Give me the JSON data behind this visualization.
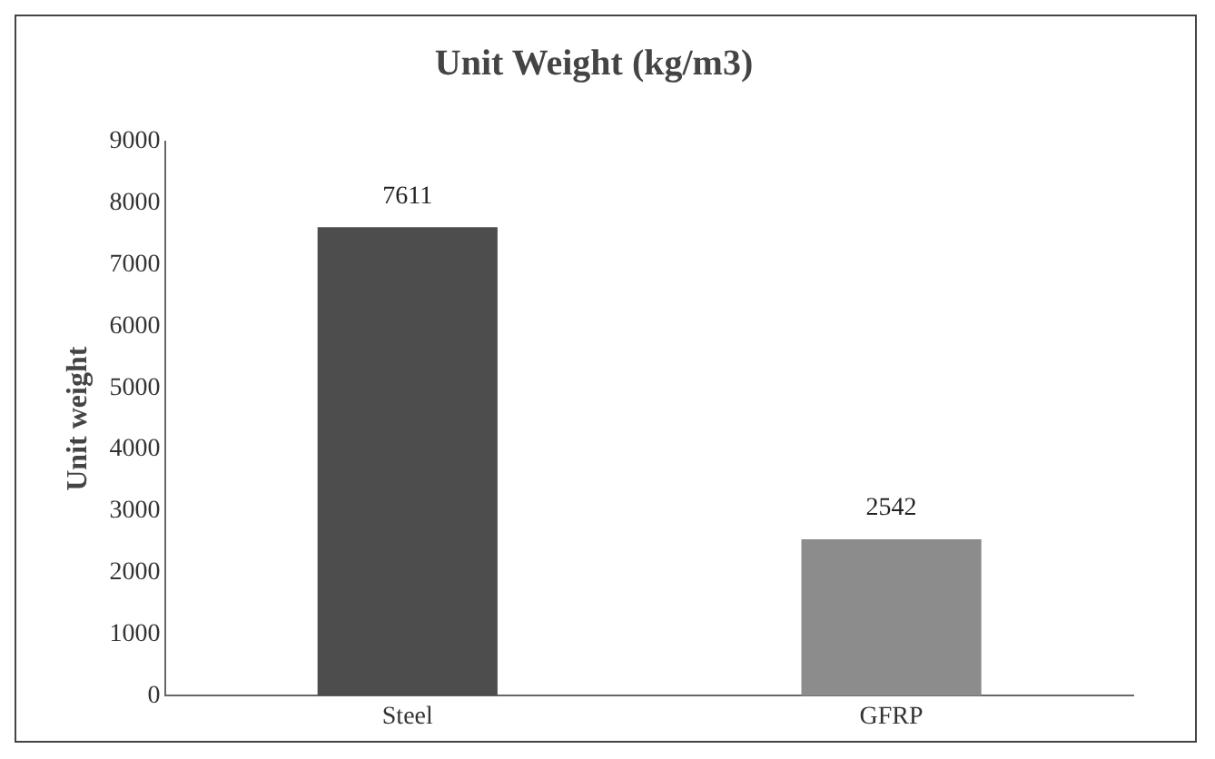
{
  "chart_data": {
    "type": "bar",
    "title": "Unit Weight (kg/m3)",
    "ylabel": "Unit weight",
    "categories": [
      "Steel",
      "GFRP"
    ],
    "values": [
      7611,
      2542
    ],
    "colors": [
      "#4d4d4d",
      "#8c8c8c"
    ],
    "ylim": [
      0,
      9000
    ],
    "yticks": [
      0,
      1000,
      2000,
      3000,
      4000,
      5000,
      6000,
      7000,
      8000,
      9000
    ],
    "data_labels": true,
    "grid": false,
    "legend": false
  }
}
